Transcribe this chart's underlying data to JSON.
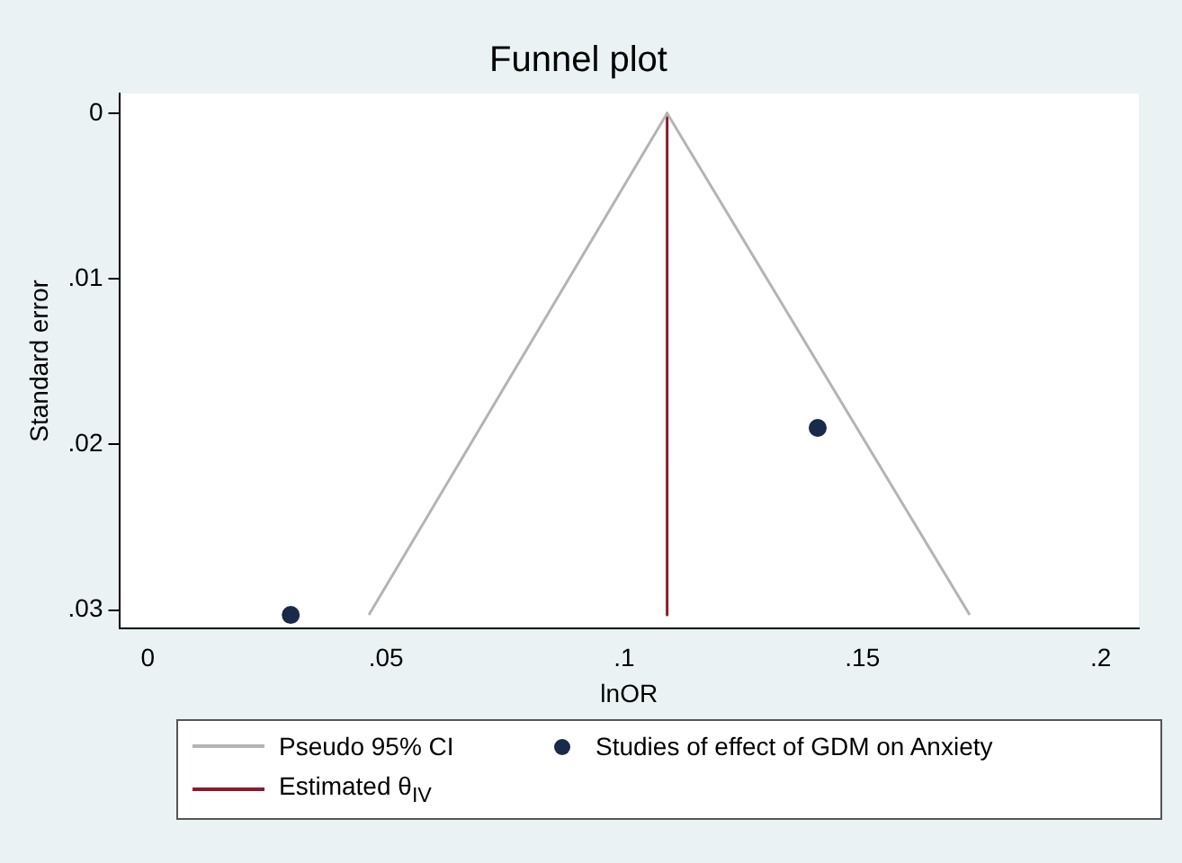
{
  "chart_data": {
    "type": "scatter",
    "title": "Funnel plot",
    "xlabel": "lnOR",
    "ylabel": "Standard error",
    "xlim": [
      -0.006,
      0.208
    ],
    "ylim": [
      0.0311,
      -0.0012
    ],
    "xticks": [
      0,
      {
        "value": 0.05,
        "label": ".05"
      },
      {
        "value": 0.1,
        "label": ".1"
      },
      {
        "value": 0.15,
        "label": ".15"
      },
      {
        "value": 0.2,
        "label": ".2"
      }
    ],
    "yticks": [
      0,
      {
        "value": 0.01,
        "label": ".01"
      },
      {
        "value": 0.02,
        "label": ".02"
      },
      {
        "value": 0.03,
        "label": ".03"
      }
    ],
    "grid": false,
    "legend": "bottom",
    "marker": "circle",
    "series": [
      {
        "name": "Pseudo 95% CI",
        "type": "line",
        "marker": "none",
        "color": "#b4b4b4",
        "x": [
          0.0464,
          0.109,
          0.1725
        ],
        "values": [
          0.0303,
          0,
          0.0303
        ]
      },
      {
        "name": "Studies of effect of GDM on Anxiety",
        "color": "#1a2a4a",
        "x": [
          0.03,
          0.1406
        ],
        "values": [
          0.0303,
          0.019
        ]
      },
      {
        "name": "Estimated θ$_{IV}$",
        "type": "line",
        "marker": "none",
        "color": "#8b1a2b",
        "x": [
          0.109,
          0.109
        ],
        "values": [
          0,
          0.0303
        ]
      }
    ]
  }
}
